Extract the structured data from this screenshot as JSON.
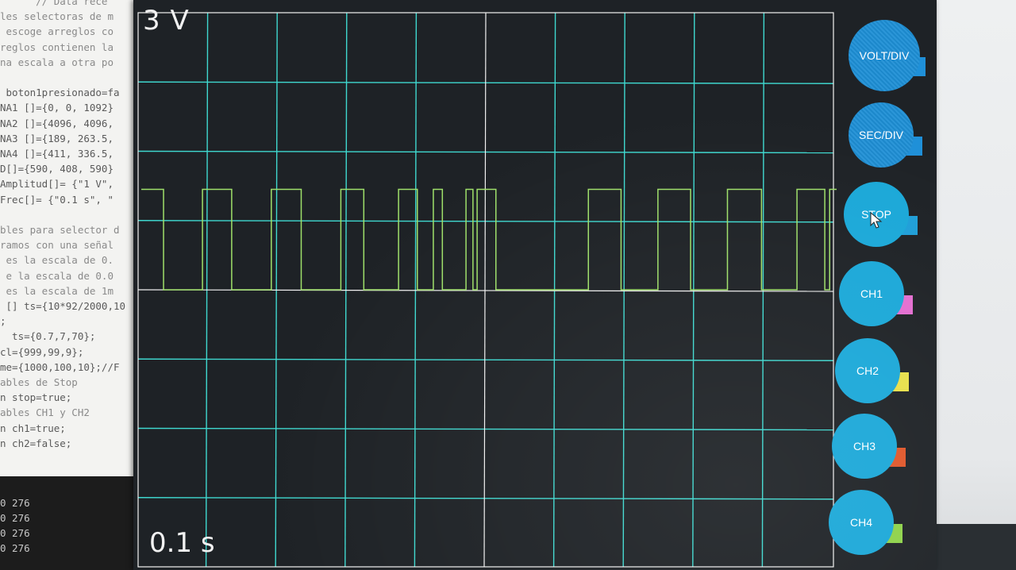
{
  "editor": {
    "lines": [
      {
        "text": "      // Data rece",
        "comment": true
      },
      {
        "text": "les selectoras de m",
        "comment": true
      },
      {
        "text": " escoge arreglos co",
        "comment": true
      },
      {
        "text": "reglos contienen la",
        "comment": true
      },
      {
        "text": "na escala a otra po",
        "comment": true
      },
      {
        "text": "",
        "comment": false
      },
      {
        "text": " boton1presionado=fa",
        "comment": false
      },
      {
        "text": "NA1 []={0, 0, 1092}",
        "comment": false
      },
      {
        "text": "NA2 []={4096, 4096,",
        "comment": false
      },
      {
        "text": "NA3 []={189, 263.5,",
        "comment": false
      },
      {
        "text": "NA4 []={411, 336.5,",
        "comment": false
      },
      {
        "text": "D[]={590, 408, 590}",
        "comment": false
      },
      {
        "text": "Amplitud[]= {\"1 V\",",
        "comment": false
      },
      {
        "text": "Frec[]= {\"0.1 s\", \"",
        "comment": false
      },
      {
        "text": "",
        "comment": false
      },
      {
        "text": "bles para selector d",
        "comment": true
      },
      {
        "text": "ramos con una señal",
        "comment": true
      },
      {
        "text": " es la escala de 0.",
        "comment": true
      },
      {
        "text": " e la escala de 0.0",
        "comment": true
      },
      {
        "text": " es la escala de 1m",
        "comment": true
      },
      {
        "text": " [] ts={10*92/2000,10",
        "comment": false
      },
      {
        "text": ";",
        "comment": false
      },
      {
        "text": "  ts={0.7,7,70};",
        "comment": false
      },
      {
        "text": "cl={999,99,9};",
        "comment": false
      },
      {
        "text": "me={1000,100,10};//F",
        "comment": false
      },
      {
        "text": "ables de Stop",
        "comment": true
      },
      {
        "text": "n stop=true;",
        "comment": false
      },
      {
        "text": "ables CH1 y CH2",
        "comment": true
      },
      {
        "text": "n ch1=true;",
        "comment": false
      },
      {
        "text": "n ch2=false;",
        "comment": false
      }
    ]
  },
  "console": {
    "lines": [
      "0 276",
      "0 276",
      "0 276",
      "0 276"
    ]
  },
  "scope": {
    "volt_scale": "3 V",
    "time_scale": "0.1 s",
    "colors": {
      "background": "#1e2226",
      "grid": "#3fd9d0",
      "axes": "#f2f2f2",
      "signal": "#9fe06a"
    },
    "signal": {
      "type": "square-wave",
      "low_level": 0,
      "high_level": 1.45,
      "level_units": "divisions above center line",
      "edges_time_divisions": [
        0.0,
        0.32,
        0.88,
        1.3,
        1.87,
        2.3,
        2.87,
        3.2,
        3.7,
        3.97,
        4.2,
        4.33,
        4.67,
        4.77,
        4.83,
        5.1,
        6.43,
        6.9,
        7.43,
        7.9,
        8.43,
        8.92,
        9.43,
        9.83,
        9.9,
        10.0
      ],
      "start_level": "high"
    }
  },
  "controls": {
    "buttons": [
      {
        "id": "volt-div",
        "label": "VOLT/DIV",
        "style": "patterned",
        "tab_color": "#1f90d8"
      },
      {
        "id": "sec-div",
        "label": "SEC/DIV",
        "style": "patterned",
        "tab_color": "#1f90d8"
      },
      {
        "id": "stop",
        "label": "STOP",
        "style": "plain",
        "tab_color": "#1f9fd8"
      },
      {
        "id": "ch1",
        "label": "CH1",
        "style": "plain",
        "tab_color": "#e26ed0"
      },
      {
        "id": "ch2",
        "label": "CH2",
        "style": "plain",
        "tab_color": "#e8e04a"
      },
      {
        "id": "ch3",
        "label": "CH3",
        "style": "plain",
        "tab_color": "#e0572a"
      },
      {
        "id": "ch4",
        "label": "CH4",
        "style": "plain",
        "tab_color": "#8ed24a"
      }
    ]
  }
}
